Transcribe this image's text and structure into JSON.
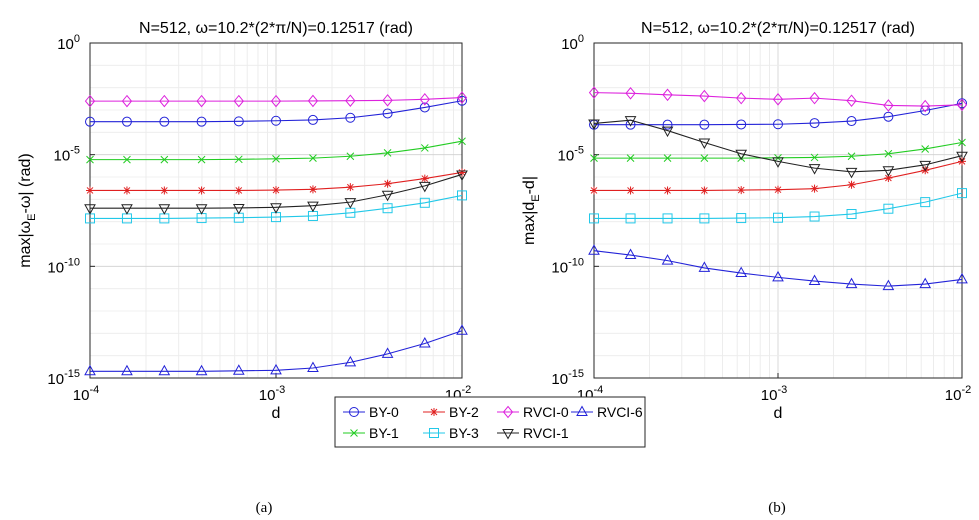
{
  "chart_data": [
    {
      "type": "line",
      "panel": "(a)",
      "title": "N=512, ω=10.2*(2*π/N)=0.12517 (rad)",
      "xlabel": "d",
      "ylabel_main": "max|ω",
      "ylabel_sub": "E",
      "ylabel_tail": "-ω| (rad)",
      "xscale": "log",
      "yscale": "log",
      "xlim": [
        0.0001,
        0.01
      ],
      "ylim": [
        1e-15,
        1
      ],
      "xticks": [
        "10",
        "10",
        "10"
      ],
      "xtick_exps": [
        "-4",
        "-3",
        "-2"
      ],
      "yticks": [
        "10",
        "10",
        "10",
        "10"
      ],
      "ytick_exps": [
        "0",
        "-5",
        "-10",
        "-15"
      ],
      "grid": true,
      "x": [
        0.0001,
        0.000158,
        0.000251,
        0.000398,
        0.000631,
        0.001,
        0.00158,
        0.00251,
        0.00398,
        0.00631,
        0.01
      ],
      "series": [
        {
          "name": "BY-0",
          "color": "#2323d8",
          "marker": "circle",
          "values": [
            0.0003,
            0.0003,
            0.0003,
            0.0003,
            0.00031,
            0.00033,
            0.00036,
            0.00045,
            0.0007,
            0.0013,
            0.0026
          ]
        },
        {
          "name": "BY-1",
          "color": "#22cc22",
          "marker": "x",
          "values": [
            6e-06,
            6e-06,
            6e-06,
            6e-06,
            6.2e-06,
            6.5e-06,
            7e-06,
            8.5e-06,
            1.2e-05,
            2e-05,
            4e-05
          ]
        },
        {
          "name": "BY-2",
          "color": "#e02020",
          "marker": "star",
          "values": [
            2.5e-07,
            2.5e-07,
            2.5e-07,
            2.5e-07,
            2.5e-07,
            2.6e-07,
            2.8e-07,
            3.5e-07,
            5e-07,
            8.5e-07,
            1.6e-06
          ]
        },
        {
          "name": "BY-3",
          "color": "#22c8e8",
          "marker": "square",
          "values": [
            1.4e-08,
            1.4e-08,
            1.4e-08,
            1.45e-08,
            1.5e-08,
            1.6e-08,
            1.8e-08,
            2.5e-08,
            4e-08,
            7e-08,
            1.5e-07
          ]
        },
        {
          "name": "RVCI-0",
          "color": "#dd22dd",
          "marker": "diamond",
          "values": [
            0.0025,
            0.0025,
            0.0025,
            0.0025,
            0.0025,
            0.0025,
            0.00255,
            0.0026,
            0.0027,
            0.003,
            0.0036
          ]
        },
        {
          "name": "RVCI-1",
          "color": "#222222",
          "marker": "triangle-down",
          "values": [
            4e-08,
            4e-08,
            4e-08,
            4e-08,
            4.1e-08,
            4.4e-08,
            5.2e-08,
            7.5e-08,
            1.6e-07,
            4e-07,
            1.3e-06
          ]
        },
        {
          "name": "RVCI-6",
          "color": "#2323d8",
          "marker": "triangle",
          "values": [
            2e-15,
            2e-15,
            2e-15,
            2e-15,
            2.1e-15,
            2.2e-15,
            2.8e-15,
            5e-15,
            1.2e-14,
            3.5e-14,
            1.3e-13
          ]
        }
      ]
    },
    {
      "type": "line",
      "panel": "(b)",
      "title": "N=512, ω=10.2*(2*π/N)=0.12517 (rad)",
      "xlabel": "d",
      "ylabel_main": "max|d",
      "ylabel_sub": "E",
      "ylabel_tail": "-d|",
      "xscale": "log",
      "yscale": "log",
      "xlim": [
        0.0001,
        0.01
      ],
      "ylim": [
        1e-15,
        1
      ],
      "xticks": [
        "10",
        "10",
        "10"
      ],
      "xtick_exps": [
        "-4",
        "-3",
        "-2"
      ],
      "yticks": [
        "10",
        "10",
        "10",
        "10"
      ],
      "ytick_exps": [
        "0",
        "-5",
        "-10",
        "-15"
      ],
      "grid": true,
      "x": [
        0.0001,
        0.000158,
        0.000251,
        0.000398,
        0.000631,
        0.001,
        0.00158,
        0.00251,
        0.00398,
        0.00631,
        0.01
      ],
      "series": [
        {
          "name": "BY-0",
          "color": "#2323d8",
          "marker": "circle",
          "values": [
            0.00022,
            0.00022,
            0.00022,
            0.00022,
            0.000225,
            0.00023,
            0.00026,
            0.00032,
            0.0005,
            0.00095,
            0.002
          ]
        },
        {
          "name": "BY-1",
          "color": "#22cc22",
          "marker": "x",
          "values": [
            7e-06,
            7e-06,
            7e-06,
            7e-06,
            7e-06,
            7.2e-06,
            7.5e-06,
            8.5e-06,
            1.1e-05,
            1.8e-05,
            3.5e-05
          ]
        },
        {
          "name": "BY-2",
          "color": "#e02020",
          "marker": "star",
          "values": [
            2.5e-07,
            2.5e-07,
            2.5e-07,
            2.5e-07,
            2.6e-07,
            2.7e-07,
            3e-07,
            4.5e-07,
            9e-07,
            2e-06,
            5e-06
          ]
        },
        {
          "name": "BY-3",
          "color": "#22c8e8",
          "marker": "square",
          "values": [
            1.4e-08,
            1.4e-08,
            1.4e-08,
            1.4e-08,
            1.45e-08,
            1.5e-08,
            1.7e-08,
            2.2e-08,
            3.8e-08,
            7.5e-08,
            1.9e-07
          ]
        },
        {
          "name": "RVCI-0",
          "color": "#dd22dd",
          "marker": "diamond",
          "values": [
            0.006,
            0.0056,
            0.0048,
            0.0042,
            0.0034,
            0.003,
            0.0034,
            0.0026,
            0.0016,
            0.0015,
            0.0017
          ]
        },
        {
          "name": "RVCI-1",
          "color": "#222222",
          "marker": "triangle-down",
          "values": [
            0.00025,
            0.00035,
            0.00012,
            3.5e-05,
            1.1e-05,
            5e-06,
            2.5e-06,
            1.7e-06,
            2e-06,
            3.5e-06,
            9e-06
          ]
        },
        {
          "name": "RVCI-6",
          "color": "#2323d8",
          "marker": "triangle",
          "values": [
            5e-10,
            3.2e-10,
            1.8e-10,
            8.5e-11,
            5e-11,
            3.2e-11,
            2.2e-11,
            1.6e-11,
            1.3e-11,
            1.6e-11,
            2.6e-11
          ]
        }
      ]
    }
  ],
  "legend": {
    "placement": "bottom-center",
    "entries": [
      "BY-0",
      "BY-2",
      "RVCI-0",
      "RVCI-6",
      "BY-1",
      "BY-3",
      "RVCI-1"
    ]
  },
  "captions": [
    "(a)",
    "(b)"
  ]
}
